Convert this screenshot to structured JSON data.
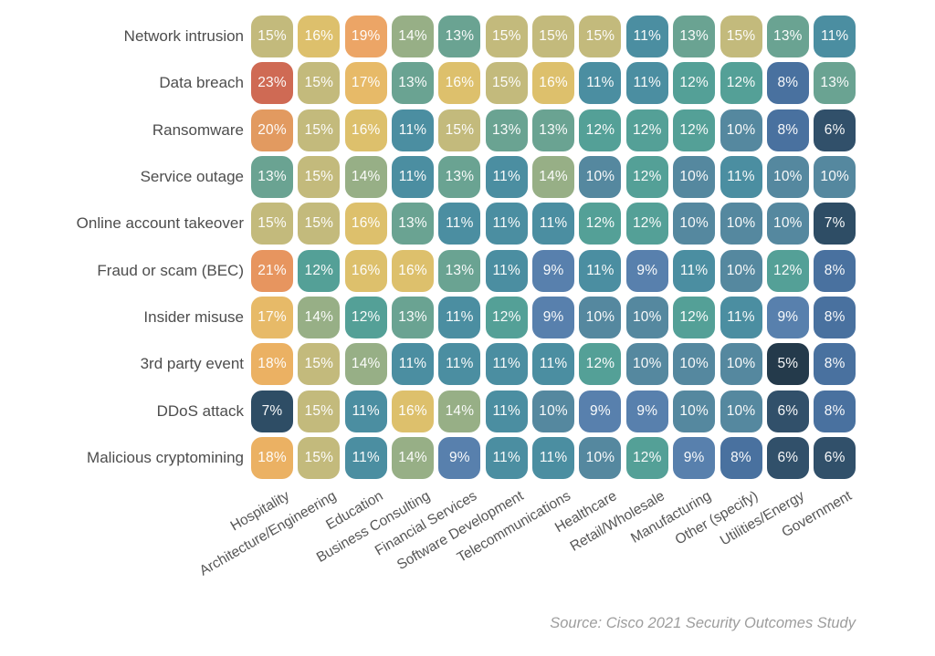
{
  "chart_data": {
    "type": "heatmap",
    "title": "",
    "unit": "%",
    "columns": [
      "Hospitality",
      "Architecture/Engineering",
      "Education",
      "Business Consulting",
      "Financial Services",
      "Software Development",
      "Telecommunications",
      "Healthcare",
      "Retail/Wholesale",
      "Manufacturing",
      "Other (specify)",
      "Utilities/Energy",
      "Government"
    ],
    "rows": [
      "Network intrusion",
      "Data breach",
      "Ransomware",
      "Service outage",
      "Online account takeover",
      "Fraud or scam (BEC)",
      "Insider misuse",
      "3rd party event",
      "DDoS attack",
      "Malicious cryptomining"
    ],
    "values": [
      [
        15,
        16,
        19,
        14,
        13,
        15,
        15,
        15,
        11,
        13,
        15,
        13,
        11
      ],
      [
        23,
        15,
        17,
        13,
        16,
        15,
        16,
        11,
        11,
        12,
        12,
        8,
        13
      ],
      [
        20,
        15,
        16,
        11,
        15,
        13,
        13,
        12,
        12,
        12,
        10,
        8,
        6
      ],
      [
        13,
        15,
        14,
        11,
        13,
        11,
        14,
        10,
        12,
        10,
        11,
        10,
        10
      ],
      [
        15,
        15,
        16,
        13,
        11,
        11,
        11,
        12,
        12,
        10,
        10,
        10,
        7
      ],
      [
        21,
        12,
        16,
        16,
        13,
        11,
        9,
        11,
        9,
        11,
        10,
        12,
        8
      ],
      [
        17,
        14,
        12,
        13,
        11,
        12,
        9,
        10,
        10,
        12,
        11,
        9,
        8
      ],
      [
        18,
        15,
        14,
        11,
        11,
        11,
        11,
        12,
        10,
        10,
        10,
        5,
        8
      ],
      [
        7,
        15,
        11,
        16,
        14,
        11,
        10,
        9,
        9,
        10,
        10,
        6,
        8
      ],
      [
        18,
        15,
        11,
        14,
        9,
        11,
        11,
        10,
        12,
        9,
        8,
        6,
        6
      ]
    ],
    "color_scale": {
      "5": "#243a4b",
      "6": "#31506a",
      "7": "#2e4d65",
      "8": "#49719f",
      "9": "#5880ad",
      "10": "#55889f",
      "11": "#4b8ea1",
      "12": "#54a097",
      "13": "#6aa392",
      "14": "#97af86",
      "15": "#c3ba7c",
      "16": "#ddc06c",
      "17": "#e7ba68",
      "18": "#ebb163",
      "19": "#eca566",
      "20": "#e29a60",
      "21": "#e7955f",
      "23": "#cf6a54"
    },
    "layout": {
      "grid": "off",
      "legend": "none",
      "x_tick_rotation_deg": -30,
      "cell_text_color": "#ffffff",
      "y_label_color": "#4d4d4d",
      "x_label_color": "#565656",
      "source_color": "#9d9d9d",
      "background": "#ffffff"
    },
    "source": "Source: Cisco 2021 Security Outcomes Study"
  }
}
